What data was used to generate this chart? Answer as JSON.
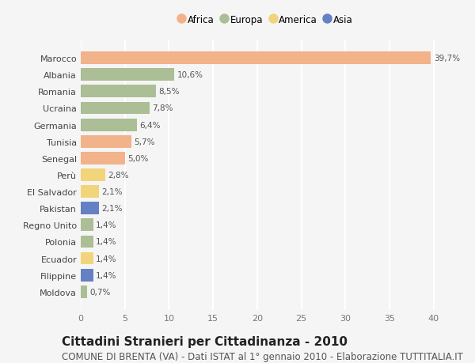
{
  "countries": [
    "Marocco",
    "Albania",
    "Romania",
    "Ucraina",
    "Germania",
    "Tunisia",
    "Senegal",
    "Perù",
    "El Salvador",
    "Pakistan",
    "Regno Unito",
    "Polonia",
    "Ecuador",
    "Filippine",
    "Moldova"
  ],
  "values": [
    39.7,
    10.6,
    8.5,
    7.8,
    6.4,
    5.7,
    5.0,
    2.8,
    2.1,
    2.1,
    1.4,
    1.4,
    1.4,
    1.4,
    0.7
  ],
  "labels": [
    "39,7%",
    "10,6%",
    "8,5%",
    "7,8%",
    "6,4%",
    "5,7%",
    "5,0%",
    "2,8%",
    "2,1%",
    "2,1%",
    "1,4%",
    "1,4%",
    "1,4%",
    "1,4%",
    "0,7%"
  ],
  "continents": [
    "Africa",
    "Europa",
    "Europa",
    "Europa",
    "Europa",
    "Africa",
    "Africa",
    "America",
    "America",
    "Asia",
    "Europa",
    "Europa",
    "America",
    "Asia",
    "Europa"
  ],
  "continent_colors": {
    "Africa": "#F2B28A",
    "Europa": "#ABBE96",
    "America": "#F2D47A",
    "Asia": "#6680C4"
  },
  "legend_order": [
    "Africa",
    "Europa",
    "America",
    "Asia"
  ],
  "title": "Cittadini Stranieri per Cittadinanza - 2010",
  "subtitle": "COMUNE DI BRENTA (VA) - Dati ISTAT al 1° gennaio 2010 - Elaborazione TUTTITALIA.IT",
  "xlim": [
    0,
    42
  ],
  "xticks": [
    0,
    5,
    10,
    15,
    20,
    25,
    30,
    35,
    40
  ],
  "background_color": "#F5F5F5",
  "grid_color": "#FFFFFF",
  "title_fontsize": 11,
  "subtitle_fontsize": 8.5
}
